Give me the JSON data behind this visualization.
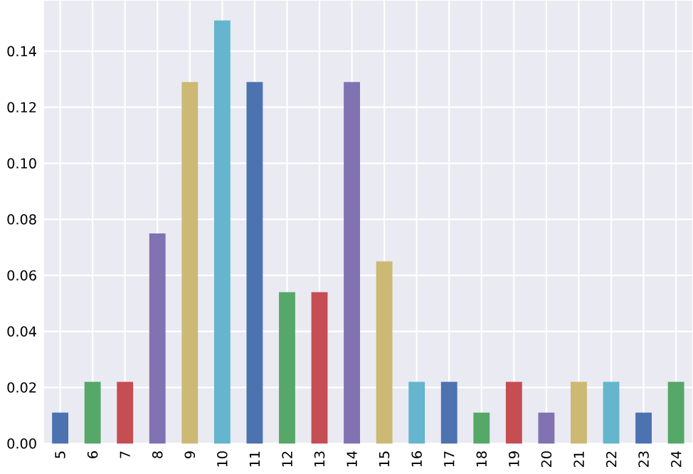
{
  "chart_data": {
    "type": "bar",
    "categories": [
      "5",
      "6",
      "7",
      "8",
      "9",
      "10",
      "11",
      "12",
      "13",
      "14",
      "15",
      "16",
      "17",
      "18",
      "19",
      "20",
      "21",
      "22",
      "23",
      "24"
    ],
    "values": [
      0.011,
      0.022,
      0.022,
      0.075,
      0.129,
      0.151,
      0.129,
      0.054,
      0.054,
      0.129,
      0.065,
      0.022,
      0.022,
      0.011,
      0.022,
      0.011,
      0.022,
      0.022,
      0.011,
      0.022
    ],
    "colors": [
      "#4c72b0",
      "#55a868",
      "#c44e52",
      "#8172b2",
      "#ccb974",
      "#64b5cd",
      "#4c72b0",
      "#55a868",
      "#c44e52",
      "#8172b2",
      "#ccb974",
      "#64b5cd",
      "#4c72b0",
      "#55a868",
      "#c44e52",
      "#8172b2",
      "#ccb974",
      "#64b5cd",
      "#4c72b0",
      "#55a868"
    ],
    "ylim": [
      0,
      0.158
    ],
    "yticks": [
      {
        "value": 0,
        "label": "0.00"
      },
      {
        "value": 0.02,
        "label": "0.02"
      },
      {
        "value": 0.04,
        "label": "0.04"
      },
      {
        "value": 0.06,
        "label": "0.06"
      },
      {
        "value": 0.08,
        "label": "0.08"
      },
      {
        "value": 0.1,
        "label": "0.10"
      },
      {
        "value": 0.12,
        "label": "0.12"
      },
      {
        "value": 0.14,
        "label": "0.14"
      }
    ],
    "grid": true
  }
}
